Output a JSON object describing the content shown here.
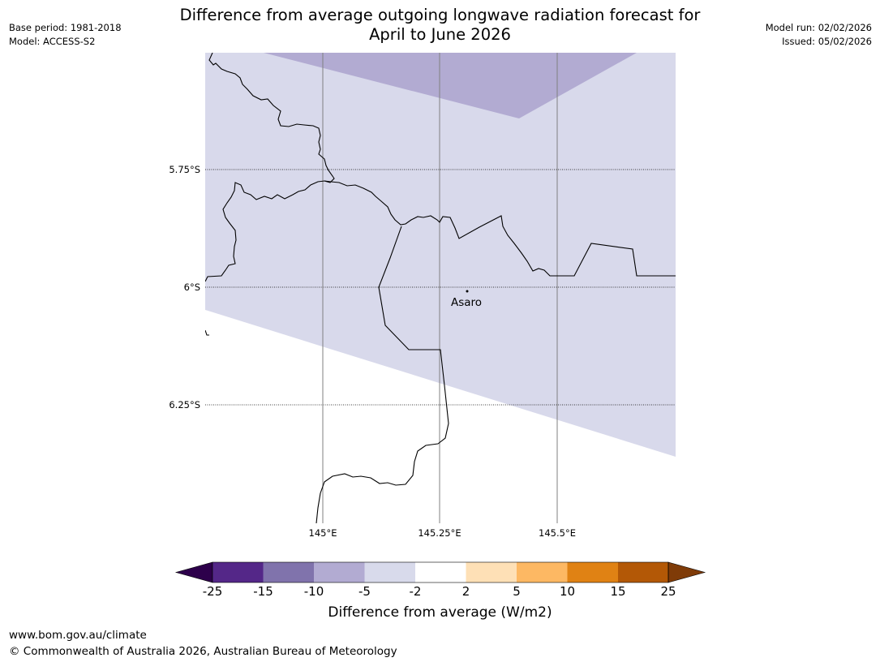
{
  "title": {
    "line1": "Difference from average outgoing longwave radiation forecast for",
    "line2": "April to June 2026"
  },
  "meta_left": {
    "base_period": "Base period: 1981-2018",
    "model": "Model: ACCESS-S2"
  },
  "meta_right": {
    "model_run": "Model run: 02/02/2026",
    "issued": "Issued: 05/02/2026"
  },
  "map": {
    "latitude_labels": [
      "5.75°S",
      "6°S",
      "6.25°S"
    ],
    "longitude_labels": [
      "145°E",
      "145.25°E",
      "145.5°E"
    ],
    "place": "Asaro",
    "colors": {
      "background": "#ffffff",
      "light_purple": "#d8d9eb",
      "mid_purple": "#b2abd2",
      "border": "#000000",
      "graticule": "#808080"
    }
  },
  "colorbar": {
    "ticks": [
      "-25",
      "-15",
      "-10",
      "-5",
      "-2",
      "2",
      "5",
      "10",
      "15",
      "25"
    ],
    "colors": [
      "#2d004b",
      "#542788",
      "#8073ac",
      "#b2abd2",
      "#d8daeb",
      "#ffffff",
      "#fee0b6",
      "#fdb863",
      "#e08214",
      "#b35806",
      "#7f3b08"
    ],
    "label": "Difference from average (W/m2)"
  },
  "footer": {
    "url": "www.bom.gov.au/climate",
    "copyright": "© Commonwealth of Australia 2026, Australian Bureau of Meteorology"
  }
}
